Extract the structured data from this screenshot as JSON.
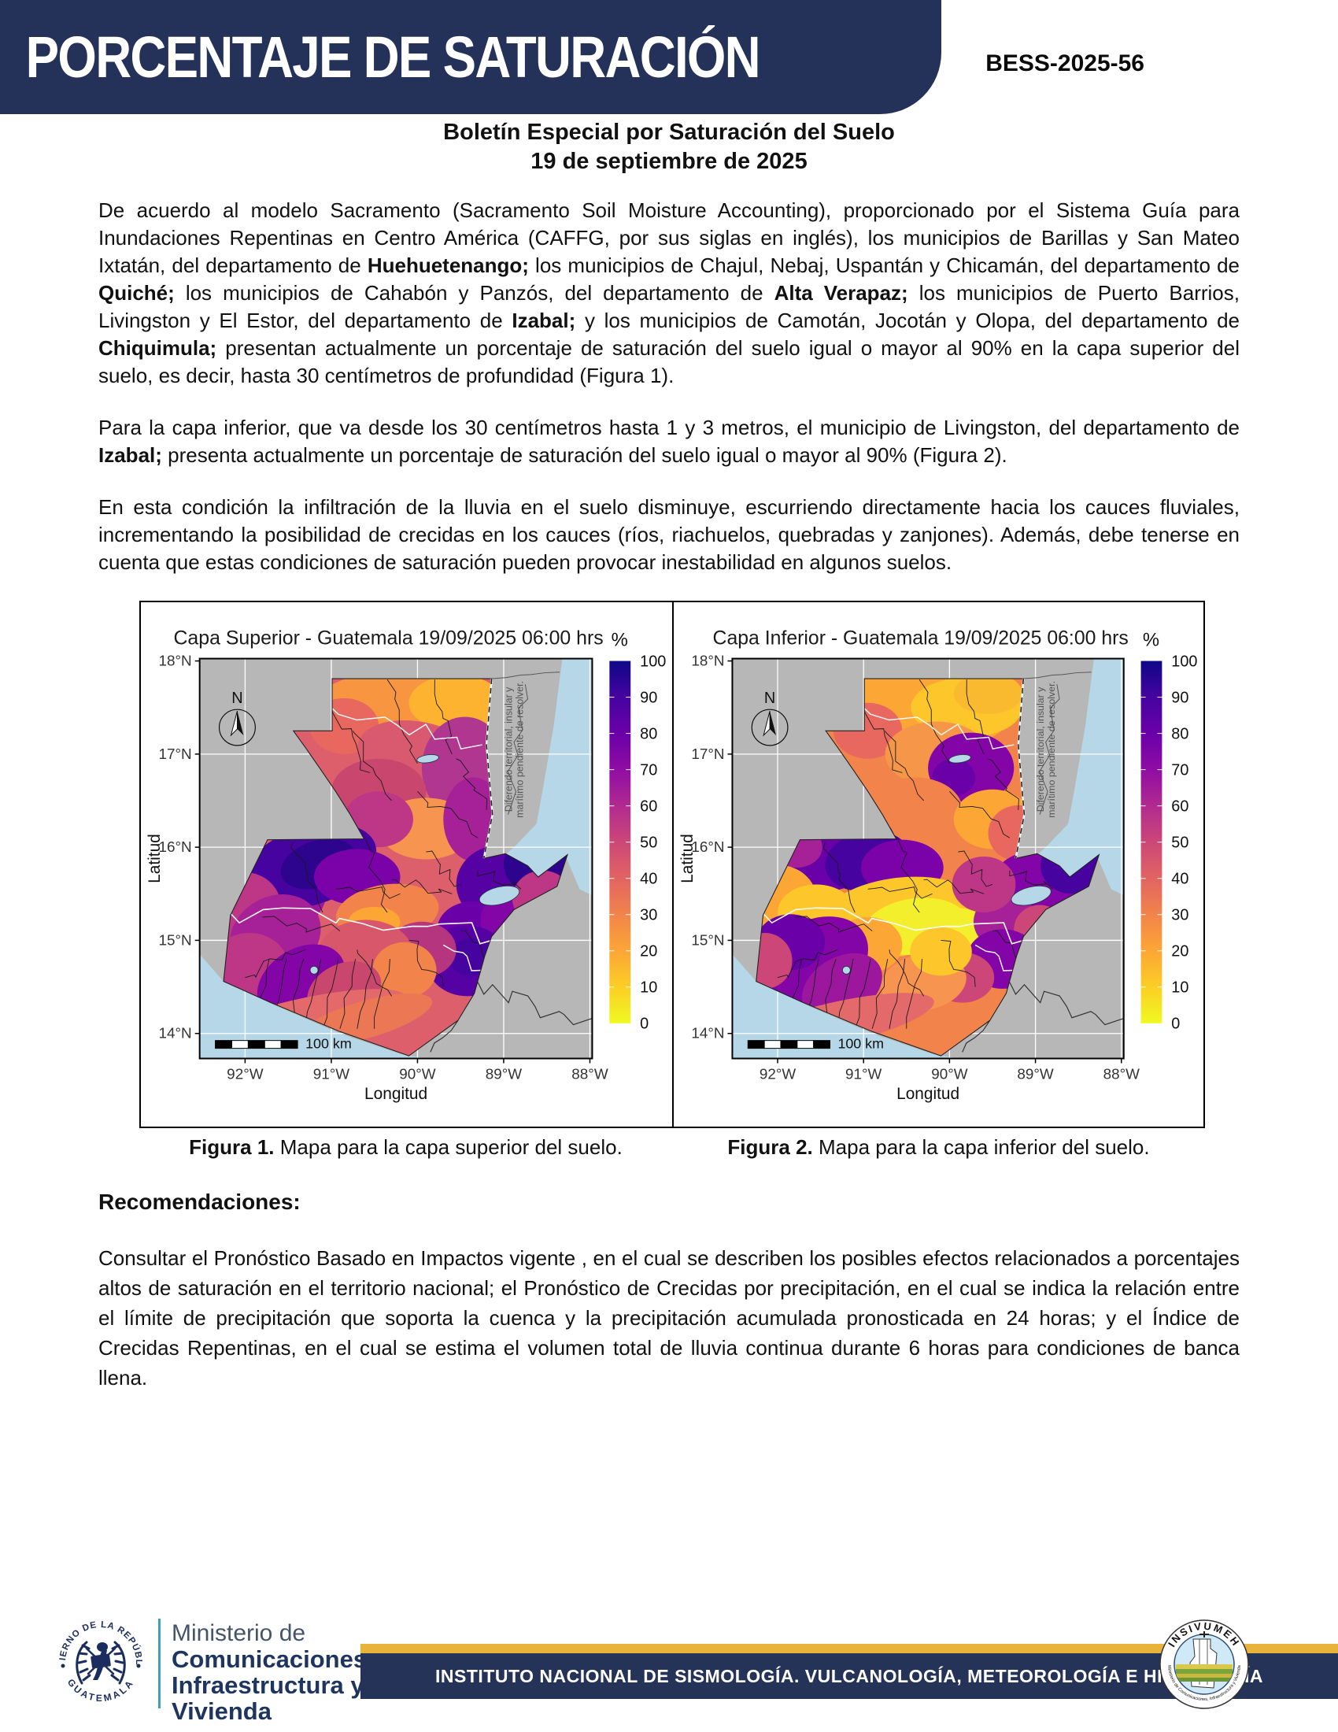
{
  "header": {
    "banner_title": "PORCENTAJE DE SATURACIÓN",
    "doc_number": "BESS-2025-56"
  },
  "subtitle": {
    "line1": "Boletín Especial por Saturación del Suelo",
    "line2": "19 de septiembre de 2025"
  },
  "paragraphs": [
    {
      "segments": [
        {
          "t": "De acuerdo al modelo Sacramento (Sacramento Soil Moisture Accounting), proporcionado por el Sistema Guía para Inundaciones Repentinas en Centro América (CAFFG, por sus siglas en inglés), los municipios de Barillas y San Mateo Ixtatán, del departamento de ",
          "b": false
        },
        {
          "t": "Huehuetenango;",
          "b": true
        },
        {
          "t": " los municipios de Chajul, Nebaj, Uspantán y Chicamán, del departamento de ",
          "b": false
        },
        {
          "t": "Quiché;",
          "b": true
        },
        {
          "t": " los municipios de Cahabón y Panzós, del departamento de ",
          "b": false
        },
        {
          "t": "Alta Verapaz;",
          "b": true
        },
        {
          "t": " los municipios de Puerto Barrios, Livingston y El Estor, del departamento de ",
          "b": false
        },
        {
          "t": "Izabal;",
          "b": true
        },
        {
          "t": " y los municipios de Camotán, Jocotán y Olopa, del departamento de ",
          "b": false
        },
        {
          "t": "Chiquimula;",
          "b": true
        },
        {
          "t": " presentan actualmente un porcentaje de saturación del suelo igual o mayor al 90% en la capa superior del suelo, es decir, hasta 30 centímetros de profundidad (Figura 1).",
          "b": false
        }
      ]
    },
    {
      "segments": [
        {
          "t": "Para la capa inferior, que va desde los 30 centímetros hasta 1 y 3 metros, el municipio de Livingston, del departamento de ",
          "b": false
        },
        {
          "t": "Izabal;",
          "b": true
        },
        {
          "t": " presenta actualmente un porcentaje de saturación del suelo igual o mayor al 90% (Figura 2).",
          "b": false
        }
      ]
    },
    {
      "segments": [
        {
          "t": "En esta condición la infiltración de la lluvia en el suelo disminuye, escurriendo directamente hacia los cauces fluviales, incrementando la posibilidad de crecidas en los cauces (ríos, riachuelos, quebradas y zanjones). Además, debe tenerse en cuenta que estas condiciones de saturación pueden provocar inestabilidad en algunos suelos.",
          "b": false
        }
      ]
    }
  ],
  "figures": [
    {
      "title": "Capa Superior - Guatemala 19/09/2025 06:00 hrs",
      "caption_label": "Figura 1.",
      "caption_text": " Mapa para la capa superior del suelo.",
      "xlabel": "Longitud",
      "ylabel": "Latitud",
      "lat_ticks": [
        "18°N",
        "17°N",
        "16°N",
        "15°N",
        "14°N"
      ],
      "lon_ticks": [
        "92°W",
        "91°W",
        "90°W",
        "89°W",
        "88°W"
      ],
      "colorbar_title": "%",
      "colorbar_ticks": [
        100,
        90,
        80,
        70,
        60,
        50,
        40,
        30,
        20,
        10,
        0
      ],
      "north_label": "N",
      "scale_label": "100 km",
      "disclaimer_line1": "Diferendo territorial, insular y",
      "disclaimer_line2": "marítimo pendiente de resolver."
    },
    {
      "title": "Capa Inferior - Guatemala 19/09/2025 06:00 hrs",
      "caption_label": "Figura 2.",
      "caption_text": " Mapa para la capa inferior del suelo.",
      "xlabel": "Longitud",
      "ylabel": "Latitud",
      "lat_ticks": [
        "18°N",
        "17°N",
        "16°N",
        "15°N",
        "14°N"
      ],
      "lon_ticks": [
        "92°W",
        "91°W",
        "90°W",
        "89°W",
        "88°W"
      ],
      "colorbar_title": "%",
      "colorbar_ticks": [
        100,
        90,
        80,
        70,
        60,
        50,
        40,
        30,
        20,
        10,
        0
      ],
      "north_label": "N",
      "scale_label": "100 km",
      "disclaimer_line1": "Diferendo territorial, insular y",
      "disclaimer_line2": "marítimo pendiente de resolver."
    }
  ],
  "recommendations": {
    "heading": "Recomendaciones:",
    "body": "Consultar el Pronóstico Basado en Impactos vigente , en el cual se describen los posibles efectos relacionados a porcentajes altos de saturación en el territorio nacional; el Pronóstico de Crecidas por precipitación, en el cual se indica la relación entre el límite de precipitación que soporta la cuenca y la precipitación acumulada pronosticada en 24 horas; y el Índice de Crecidas Repentinas, en el cual se estima el volumen total de lluvia continua durante 6 horas para condiciones de banca llena."
  },
  "footer": {
    "seal_top": "GOBIERNO DE LA REPÚBLICA",
    "seal_bottom": "GUATEMALA",
    "ministry_light": "Ministerio de",
    "ministry_bold": [
      "Comunicaciones,",
      "Infraestructura y",
      "Vivienda"
    ],
    "institute_banner": "INSTITUTO NACIONAL DE SISMOLOGÍA. VULCANOLOGÍA, METEOROLOGÍA E HIDROLOGÍA",
    "insivumeh_arc": "INSIVUMEH",
    "insivumeh_sub": "Ministerio de Comunicaciones, Infraestructura y Vivienda"
  },
  "colors": {
    "banner_navy": "#243158",
    "band_navy": "#253358",
    "gold": "#E9B23B",
    "ocean_blue": "#B5D7E8",
    "land_gray": "#B7B7B7",
    "teal_divider": "#3D9FC4",
    "ministry_navy": "#1E3560",
    "colorbar_top": "#0D0887",
    "colorbar_bottom": "#F0F921"
  }
}
